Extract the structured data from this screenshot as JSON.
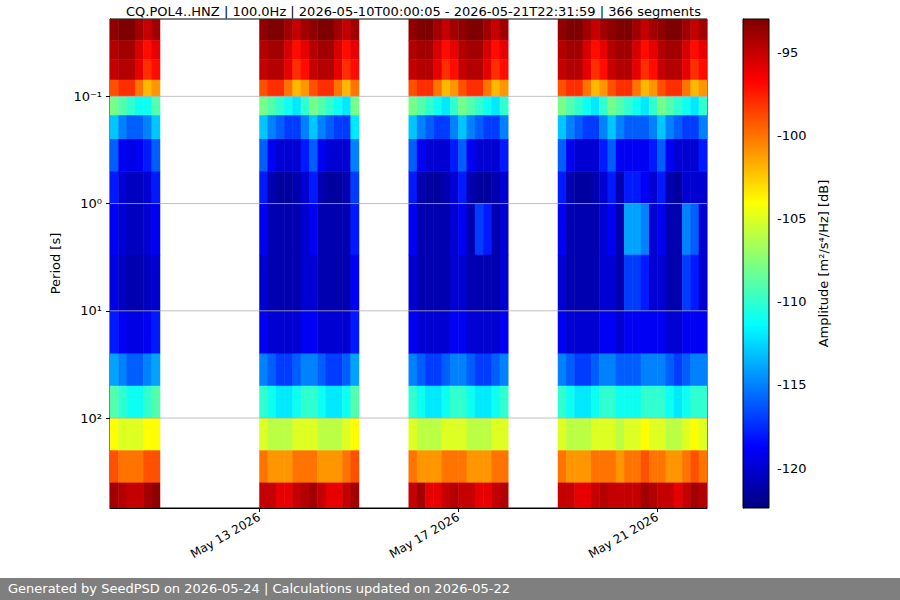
{
  "chart_data": {
    "type": "heatmap",
    "title": "CQ.POL4..HNZ | 100.0Hz | 2026-05-10T00:00:05 - 2026-05-21T22:31:59 | 366 segments",
    "ylabel": "Period [s]",
    "footer": "Generated by SeedPSD on 2026-05-24 | Calculations updated on 2026-05-22",
    "log": "y",
    "grid": true,
    "xlim": [
      "2026-05-10T00:00",
      "2026-05-22T00:00"
    ],
    "xticks": [
      {
        "value": "2026-05-13T00:00",
        "label": "May 13 2026"
      },
      {
        "value": "2026-05-17T00:00",
        "label": "May 17 2026"
      },
      {
        "value": "2026-05-21T00:00",
        "label": "May 21 2026"
      }
    ],
    "ylim": [
      0.019,
      690
    ],
    "yticks": [
      {
        "value": 0.1,
        "label": "10⁻¹"
      },
      {
        "value": 1,
        "label": "10⁰"
      },
      {
        "value": 10,
        "label": "10¹"
      },
      {
        "value": 100,
        "label": "10²"
      }
    ],
    "periods": [
      0.019,
      0.03,
      0.045,
      0.07,
      0.1,
      0.15,
      0.25,
      0.5,
      1,
      3,
      10,
      25,
      50,
      100,
      200,
      400,
      690
    ],
    "x": [
      "2026-05-10T00:00",
      "2026-05-10T04:00",
      "2026-05-10T08:00",
      "2026-05-10T12:00",
      "2026-05-10T16:00",
      "2026-05-10T20:00",
      "2026-05-11T00:00",
      "2026-05-11T04:00",
      "2026-05-11T08:00",
      "2026-05-11T12:00",
      "2026-05-11T16:00",
      "2026-05-11T20:00",
      "2026-05-12T00:00",
      "2026-05-12T04:00",
      "2026-05-12T08:00",
      "2026-05-12T12:00",
      "2026-05-12T16:00",
      "2026-05-12T20:00",
      "2026-05-13T00:00",
      "2026-05-13T04:00",
      "2026-05-13T08:00",
      "2026-05-13T12:00",
      "2026-05-13T16:00",
      "2026-05-13T20:00",
      "2026-05-14T00:00",
      "2026-05-14T04:00",
      "2026-05-14T08:00",
      "2026-05-14T12:00",
      "2026-05-14T16:00",
      "2026-05-14T20:00",
      "2026-05-15T00:00",
      "2026-05-15T04:00",
      "2026-05-15T08:00",
      "2026-05-15T12:00",
      "2026-05-15T16:00",
      "2026-05-15T20:00",
      "2026-05-16T00:00",
      "2026-05-16T04:00",
      "2026-05-16T08:00",
      "2026-05-16T12:00",
      "2026-05-16T16:00",
      "2026-05-16T20:00",
      "2026-05-17T00:00",
      "2026-05-17T04:00",
      "2026-05-17T08:00",
      "2026-05-17T12:00",
      "2026-05-17T16:00",
      "2026-05-17T20:00",
      "2026-05-18T00:00",
      "2026-05-18T04:00",
      "2026-05-18T08:00",
      "2026-05-18T12:00",
      "2026-05-18T16:00",
      "2026-05-18T20:00",
      "2026-05-19T00:00",
      "2026-05-19T04:00",
      "2026-05-19T08:00",
      "2026-05-19T12:00",
      "2026-05-19T16:00",
      "2026-05-19T20:00",
      "2026-05-20T00:00",
      "2026-05-20T04:00",
      "2026-05-20T08:00",
      "2026-05-20T12:00",
      "2026-05-20T16:00",
      "2026-05-20T20:00",
      "2026-05-21T00:00",
      "2026-05-21T04:00",
      "2026-05-21T08:00",
      "2026-05-21T12:00",
      "2026-05-21T16:00",
      "2026-05-21T20:00"
    ],
    "cells": [
      [
        -93.5,
        -94.5,
        -95,
        -99,
        -108,
        -113,
        -116,
        -118,
        -119,
        -119.5,
        -118,
        -114,
        -109,
        -104,
        -99,
        -94
      ],
      [
        -93,
        -94,
        -94.5,
        -98,
        -109,
        -115,
        -119,
        -120,
        -120,
        -120.5,
        -119,
        -115,
        -110,
        -105,
        -100,
        -94.5
      ],
      [
        -93,
        -94,
        -94.5,
        -98,
        -110,
        -116,
        -119.5,
        -120.5,
        -120.5,
        -121,
        -119.5,
        -116,
        -111,
        -105,
        -100,
        -95
      ],
      [
        -94,
        -95.5,
        -96,
        -100,
        -111,
        -116,
        -119,
        -120.5,
        -120.5,
        -121,
        -119.5,
        -116,
        -111,
        -105,
        -100,
        -95
      ],
      [
        -95,
        -97,
        -98,
        -102,
        -111,
        -115,
        -118,
        -120,
        -120,
        -120.5,
        -119,
        -115,
        -110,
        -104,
        -99,
        -94
      ],
      [
        -94,
        -96,
        -97,
        -101,
        -109,
        -113,
        -116,
        -118,
        -119,
        -120,
        -118,
        -114,
        -109,
        -104,
        -99,
        -93.5
      ],
      null,
      null,
      null,
      null,
      null,
      null,
      null,
      null,
      null,
      null,
      null,
      null,
      [
        -93.5,
        -94.5,
        -95,
        -99,
        -108,
        -113,
        -116,
        -118,
        -119,
        -120,
        -119,
        -115,
        -110,
        -105,
        -100,
        -95
      ],
      [
        -93,
        -94,
        -94.5,
        -98,
        -109,
        -115,
        -119,
        -121,
        -121,
        -121,
        -120,
        -116,
        -111,
        -106,
        -101,
        -95
      ],
      [
        -93,
        -94,
        -94.5,
        -98,
        -110,
        -116,
        -120,
        -121.5,
        -121,
        -121,
        -120,
        -117,
        -112,
        -106,
        -101,
        -96
      ],
      [
        -94,
        -95.5,
        -96,
        -100,
        -111,
        -117,
        -120,
        -121.5,
        -121,
        -121,
        -120,
        -117,
        -112,
        -106,
        -101,
        -96
      ],
      [
        -95,
        -97,
        -98,
        -102,
        -112,
        -117,
        -120,
        -121,
        -121,
        -121,
        -120,
        -116,
        -111,
        -105,
        -100,
        -95
      ],
      [
        -94,
        -96,
        -97,
        -101,
        -110,
        -115,
        -118,
        -120,
        -120,
        -120,
        -119,
        -115,
        -110,
        -105,
        -100,
        -94.5
      ],
      [
        -93.5,
        -94.5,
        -95,
        -99,
        -108,
        -113,
        -116,
        -118,
        -119,
        -120,
        -119,
        -115,
        -110,
        -105,
        -100,
        -94
      ],
      [
        -93,
        -94,
        -94.5,
        -98,
        -109,
        -115,
        -119,
        -121,
        -121,
        -121,
        -120,
        -116,
        -111,
        -106,
        -101,
        -95
      ],
      [
        -93,
        -94,
        -94.5,
        -98,
        -110,
        -116,
        -120,
        -121.5,
        -121,
        -121,
        -120,
        -117,
        -112,
        -106,
        -101,
        -96
      ],
      [
        -94,
        -95.5,
        -96,
        -100,
        -111,
        -117,
        -120,
        -121.5,
        -121,
        -121,
        -120,
        -117,
        -112,
        -106,
        -101,
        -96
      ],
      [
        -95,
        -97,
        -98,
        -102,
        -112,
        -117,
        -120,
        -121,
        -121,
        -121,
        -120,
        -116,
        -111,
        -105,
        -100,
        -95
      ],
      [
        -94,
        -96,
        -97,
        -100,
        -108,
        -112,
        -115,
        -117,
        -118,
        -119,
        -118,
        -114,
        -109,
        -104,
        -99,
        -94
      ],
      null,
      null,
      null,
      null,
      null,
      null,
      [
        -93.5,
        -94.5,
        -95,
        -99,
        -108,
        -113,
        -116,
        -118,
        -119,
        -120,
        -119,
        -115,
        -110,
        -105,
        -100,
        -95
      ],
      [
        -93,
        -94,
        -94.5,
        -98,
        -109,
        -115,
        -119,
        -121,
        -121,
        -121,
        -120,
        -116,
        -111,
        -106,
        -101,
        -94
      ],
      [
        -93,
        -94,
        -94.5,
        -98,
        -110,
        -116,
        -120,
        -121.5,
        -121,
        -121,
        -120,
        -117,
        -112,
        -106,
        -101,
        -96
      ],
      [
        -94,
        -95.5,
        -96,
        -100,
        -111,
        -117,
        -120,
        -121.5,
        -121,
        -121,
        -120,
        -117,
        -112,
        -106,
        -101,
        -96
      ],
      [
        -95,
        -97,
        -98,
        -102,
        -112,
        -117,
        -120,
        -121,
        -121,
        -121,
        -120,
        -116,
        -111,
        -105,
        -100,
        -95
      ],
      [
        -94,
        -96,
        -97,
        -101,
        -110,
        -115,
        -118,
        -120,
        -120,
        -120,
        -119,
        -115,
        -110,
        -105,
        -100,
        -94.5
      ],
      [
        -93.5,
        -94.5,
        -95,
        -99,
        -108,
        -113,
        -116,
        -118,
        -119,
        -120,
        -119,
        -115,
        -110,
        -105,
        -100,
        -95
      ],
      [
        -93,
        -94,
        -94.5,
        -98,
        -109,
        -115,
        -119,
        -121,
        -121,
        -121,
        -120,
        -116,
        -111,
        -106,
        -101,
        -95
      ],
      [
        -93,
        -94,
        -94.5,
        -98,
        -110,
        -116,
        -120,
        -121.5,
        -117,
        -121,
        -120,
        -117,
        -112,
        -106,
        -101,
        -96
      ],
      [
        -94,
        -95.5,
        -96,
        -100,
        -111,
        -117,
        -120,
        -121.5,
        -118,
        -121,
        -120,
        -117,
        -112,
        -106,
        -101,
        -96
      ],
      [
        -95,
        -97,
        -98,
        -102,
        -112,
        -117,
        -120,
        -121,
        -121,
        -121,
        -120,
        -116,
        -111,
        -105,
        -100,
        -95
      ],
      [
        -94,
        -96,
        -97,
        -101,
        -110,
        -115,
        -118,
        -120,
        -120,
        -120,
        -119,
        -115,
        -110,
        -105,
        -100,
        -94.5
      ],
      null,
      null,
      null,
      null,
      null,
      null,
      [
        -93.5,
        -94.5,
        -95,
        -99,
        -108,
        -113,
        -116,
        -118,
        -119,
        -120,
        -119,
        -115,
        -110,
        -105,
        -100,
        -95
      ],
      [
        -93,
        -94,
        -94.5,
        -98,
        -109,
        -115,
        -119,
        -121,
        -121,
        -121,
        -120,
        -116,
        -111,
        -106,
        -101,
        -95
      ],
      [
        -93,
        -94,
        -94.5,
        -98,
        -110,
        -116,
        -120,
        -121.5,
        -121,
        -121,
        -120,
        -117,
        -112,
        -106,
        -101,
        -96
      ],
      [
        -94,
        -95.5,
        -96,
        -100,
        -111,
        -117,
        -120,
        -121.5,
        -121,
        -121,
        -120,
        -117,
        -112,
        -106,
        -101,
        -96
      ],
      [
        -95,
        -97,
        -98,
        -102,
        -112,
        -117,
        -120,
        -121,
        -121,
        -121,
        -120,
        -116,
        -111,
        -105,
        -100,
        -95
      ],
      [
        -94,
        -96,
        -97,
        -101,
        -110,
        -115,
        -118,
        -120,
        -120,
        -120,
        -119,
        -115,
        -110,
        -105,
        -100,
        -94.5
      ],
      [
        -93.5,
        -94.5,
        -95,
        -99,
        -108,
        -113,
        -116,
        -118,
        -119,
        -120,
        -119,
        -115,
        -110,
        -105,
        -100,
        -95
      ],
      [
        -93,
        -94,
        -94.5,
        -98,
        -109,
        -115,
        -119,
        -121,
        -121,
        -121,
        -120,
        -116,
        -111,
        -106,
        -101,
        -95
      ],
      [
        -93,
        -94,
        -94.5,
        -98,
        -110,
        -116,
        -119,
        -118,
        -114,
        -117,
        -119,
        -116,
        -111,
        -105,
        -100,
        -95
      ],
      [
        -94,
        -95.5,
        -96,
        -100,
        -111,
        -116,
        -119,
        -118,
        -114,
        -117,
        -119,
        -116,
        -111,
        -105,
        -100,
        -95
      ],
      [
        -95,
        -97,
        -98,
        -102,
        -112,
        -116,
        -119,
        -119,
        -115,
        -118,
        -119,
        -115,
        -110,
        -104,
        -99,
        -94
      ],
      [
        -94,
        -96,
        -97,
        -101,
        -110,
        -115,
        -118,
        -120,
        -120,
        -120,
        -119,
        -115,
        -110,
        -105,
        -100,
        -94.5
      ],
      [
        -93.5,
        -94.5,
        -95,
        -99,
        -108,
        -113,
        -116,
        -118,
        -119,
        -120,
        -119,
        -115,
        -110,
        -105,
        -100,
        -95
      ],
      [
        -93,
        -94,
        -94.5,
        -98,
        -109,
        -115,
        -119,
        -121,
        -121,
        -121,
        -120,
        -116,
        -111,
        -106,
        -101,
        -95
      ],
      [
        -93,
        -94,
        -94.5,
        -98,
        -110,
        -116,
        -120,
        -121.5,
        -121,
        -121,
        -120,
        -117,
        -112,
        -106,
        -101,
        -96
      ],
      [
        -94,
        -95.5,
        -96,
        -100,
        -111,
        -117,
        -120,
        -120,
        -115,
        -117,
        -119,
        -116,
        -111,
        -105,
        -100,
        -95
      ],
      [
        -95,
        -97,
        -98,
        -102,
        -112,
        -117,
        -120,
        -120,
        -116,
        -118,
        -119,
        -115,
        -110,
        -104,
        -99,
        -94
      ],
      [
        -94,
        -96,
        -97,
        -101,
        -110,
        -115,
        -118,
        -120,
        -120,
        -120,
        -119,
        -115,
        -110,
        -105,
        -100,
        -94.5
      ]
    ],
    "colorbar": {
      "label": "Amplitude [m²/s⁴/Hz] [dB]",
      "lim": [
        -122.4,
        -93
      ],
      "ticks": [
        -120,
        -115,
        -110,
        -105,
        -100,
        -95
      ]
    }
  }
}
